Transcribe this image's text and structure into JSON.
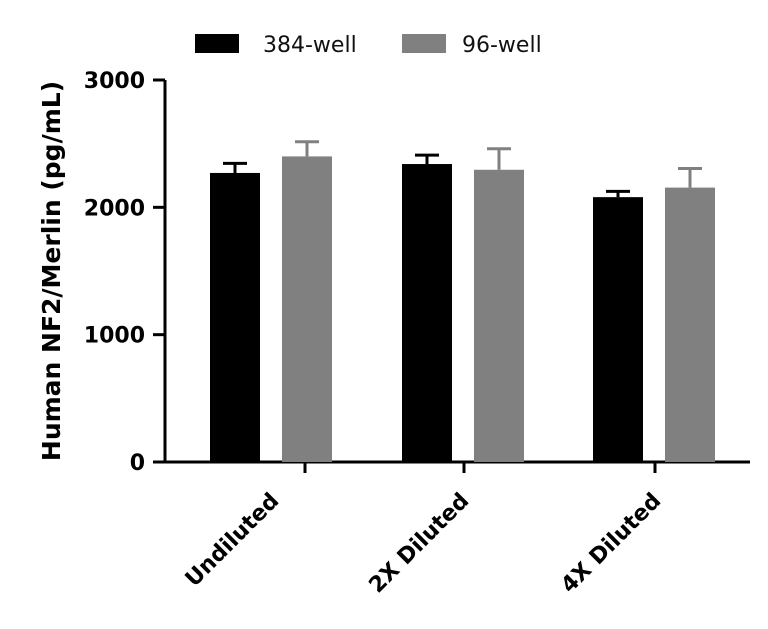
{
  "chart_data": {
    "type": "bar",
    "categories": [
      "Undiluted",
      "2X Diluted",
      "4X Diluted"
    ],
    "series": [
      {
        "name": "384-well",
        "color": "#000000",
        "values": [
          2270,
          2340,
          2080
        ],
        "errors": [
          75,
          70,
          45
        ]
      },
      {
        "name": "96-well",
        "color": "#808080",
        "values": [
          2400,
          2295,
          2155
        ],
        "errors": [
          115,
          165,
          150
        ]
      }
    ],
    "ylabel": "Human NF2/Merlin (pg/mL)",
    "ylim": [
      0,
      3000
    ],
    "yticks": [
      0,
      1000,
      2000,
      3000
    ],
    "legend_position": "top",
    "grid": false
  }
}
